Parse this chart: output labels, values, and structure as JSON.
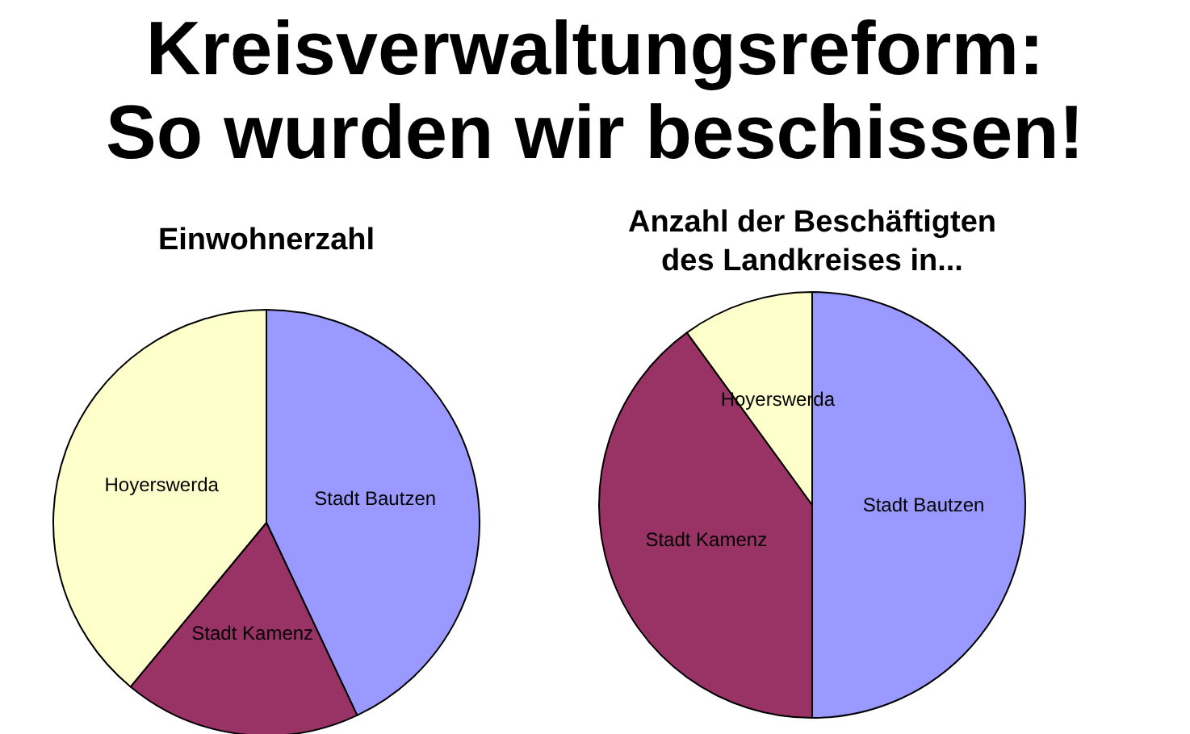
{
  "chart_data": [
    {
      "type": "pie",
      "title": "Kreisverwaltungsreform:\nSo wurden wir beschissen!",
      "subtitle": "Einwohnerzahl",
      "categories": [
        "Stadt Bautzen",
        "Stadt Kamenz",
        "Hoyerswerda"
      ],
      "values": [
        43,
        18,
        39
      ],
      "colors": [
        "#9999ff",
        "#993366",
        "#ffffcc"
      ]
    },
    {
      "type": "pie",
      "title": "Anzahl der Beschäftigten\ndes Landkreises in...",
      "categories": [
        "Stadt Bautzen",
        "Stadt Kamenz",
        "Hoyerswerda"
      ],
      "values": [
        50,
        40,
        10
      ],
      "colors": [
        "#9999ff",
        "#993366",
        "#ffffcc"
      ]
    }
  ]
}
